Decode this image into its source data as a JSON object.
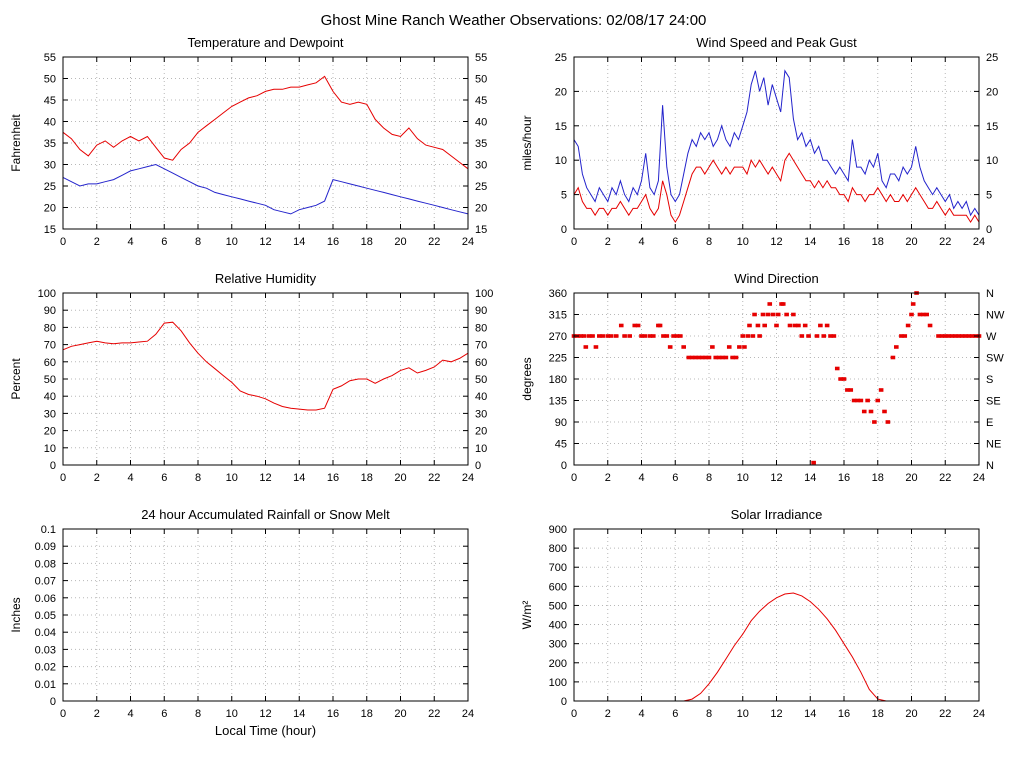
{
  "page_title": "Ghost Mine Ranch Weather Observations: 02/08/17 24:00",
  "colors": {
    "red": "#e60000",
    "blue": "#2424cc",
    "grid": "#b8b8b8",
    "axis": "#000000"
  },
  "x_axis": {
    "min": 0,
    "max": 24,
    "ticks": [
      0,
      2,
      4,
      6,
      8,
      10,
      12,
      14,
      16,
      18,
      20,
      22,
      24
    ]
  },
  "chart_data": [
    {
      "id": "temperature-dewpoint",
      "type": "line",
      "title": "Temperature and Dewpoint",
      "ylabel": "Fahrenheit",
      "xlabel": "",
      "ylim": [
        15,
        55
      ],
      "yticks": [
        15,
        20,
        25,
        30,
        35,
        40,
        45,
        50,
        55
      ],
      "right_labels": "mirror",
      "series": [
        {
          "name": "temperature",
          "color": "red",
          "x0": 0,
          "dx": 0.5,
          "y": [
            37.5,
            36,
            33.5,
            32,
            34.5,
            35.5,
            34,
            35.5,
            36.5,
            35.5,
            36.5,
            34,
            31.5,
            31,
            33.5,
            35,
            37.5,
            39,
            40.5,
            42,
            43.5,
            44.5,
            45.5,
            46,
            47,
            47.5,
            47.5,
            48,
            48,
            48.5,
            49,
            50.5,
            47,
            44.5,
            44,
            44.5,
            44,
            40.5,
            38.5,
            37,
            36.5,
            38.5,
            36,
            34.5,
            34,
            33.5,
            32,
            30.5,
            29
          ]
        },
        {
          "name": "dewpoint",
          "color": "blue",
          "x0": 0,
          "dx": 0.5,
          "y": [
            27,
            26,
            25,
            25.5,
            25.5,
            26,
            26.5,
            27.5,
            28.5,
            29,
            29.5,
            30,
            29,
            28,
            27,
            26,
            25,
            24.5,
            23.5,
            23,
            22.5,
            22,
            21.5,
            21,
            20.5,
            19.5,
            19,
            18.5,
            19.5,
            20,
            20.5,
            21.5,
            26.5,
            26,
            25.5,
            25,
            24.5,
            24,
            23.5,
            23,
            22.5,
            22,
            21.5,
            21,
            20.5,
            20,
            19.5,
            19,
            18.5
          ]
        }
      ]
    },
    {
      "id": "wind-speed-peak-gust",
      "type": "line",
      "title": "Wind Speed and Peak Gust",
      "ylabel": "miles/hour",
      "xlabel": "",
      "ylim": [
        0,
        25
      ],
      "yticks": [
        0,
        5,
        10,
        15,
        20,
        25
      ],
      "right_labels": "mirror",
      "series": [
        {
          "name": "peak-gust",
          "color": "blue",
          "x0": 0,
          "dx": 0.25,
          "y": [
            13,
            12,
            8,
            6,
            5,
            4,
            6,
            5,
            4,
            6,
            5,
            7,
            5,
            4,
            6,
            5,
            7,
            11,
            6,
            5,
            7,
            18,
            9,
            5,
            4,
            5,
            8,
            11,
            13,
            12,
            14,
            13,
            14,
            12,
            13,
            15,
            13,
            12,
            14,
            13,
            15,
            17,
            21,
            23,
            20,
            22,
            18,
            21,
            19,
            17,
            23,
            22,
            16,
            13,
            14,
            12,
            13,
            11,
            12,
            10,
            10,
            9,
            8,
            9,
            8,
            7,
            13,
            9,
            9,
            8,
            10,
            9,
            11,
            7,
            6,
            8,
            8,
            7,
            9,
            8,
            9,
            12,
            9,
            7,
            6,
            5,
            6,
            5,
            4,
            5,
            3,
            4,
            3,
            4,
            2,
            3,
            2
          ]
        },
        {
          "name": "wind-speed",
          "color": "red",
          "x0": 0,
          "dx": 0.25,
          "y": [
            5,
            6,
            4,
            3,
            3,
            2,
            3,
            3,
            2,
            3,
            3,
            4,
            3,
            2,
            3,
            3,
            4,
            5,
            3,
            2,
            3,
            7,
            5,
            2,
            1,
            2,
            4,
            6,
            8,
            9,
            9,
            8,
            9,
            10,
            9,
            8,
            9,
            8,
            9,
            9,
            9,
            8,
            10,
            9,
            10,
            9,
            8,
            9,
            8,
            7,
            10,
            11,
            10,
            9,
            8,
            7,
            7,
            6,
            7,
            6,
            7,
            6,
            6,
            5,
            5,
            4,
            6,
            5,
            5,
            4,
            5,
            5,
            6,
            5,
            4,
            5,
            4,
            4,
            5,
            4,
            5,
            6,
            5,
            4,
            3,
            3,
            4,
            3,
            2,
            3,
            2,
            2,
            2,
            2,
            1,
            2,
            1
          ]
        }
      ]
    },
    {
      "id": "relative-humidity",
      "type": "line",
      "title": "Relative Humidity",
      "ylabel": "Percent",
      "xlabel": "",
      "ylim": [
        0,
        100
      ],
      "yticks": [
        0,
        10,
        20,
        30,
        40,
        50,
        60,
        70,
        80,
        90,
        100
      ],
      "right_labels": "mirror",
      "series": [
        {
          "name": "humidity",
          "color": "red",
          "x0": 0,
          "dx": 0.5,
          "y": [
            67,
            69,
            70,
            71,
            72,
            71,
            70.5,
            71,
            71,
            71.5,
            72,
            76,
            82.5,
            83,
            78,
            71,
            65,
            60,
            56,
            52,
            48,
            43,
            41,
            40,
            38.5,
            36,
            34,
            33,
            32.5,
            32,
            32,
            33,
            44,
            46,
            49,
            50,
            50,
            47.5,
            50,
            52,
            55,
            56.5,
            53.5,
            55,
            57,
            61,
            60,
            62,
            65
          ]
        }
      ]
    },
    {
      "id": "wind-direction",
      "type": "scatter",
      "title": "Wind Direction",
      "ylabel": "degrees",
      "xlabel": "",
      "ylim": [
        0,
        360
      ],
      "yticks": [
        0,
        45,
        90,
        135,
        180,
        225,
        270,
        315,
        360
      ],
      "right_labels": [
        "N",
        "NE",
        "E",
        "SE",
        "S",
        "SW",
        "W",
        "NW",
        "N"
      ],
      "point_color": "red",
      "points": [
        [
          0,
          270
        ],
        [
          0.2,
          270
        ],
        [
          0.4,
          270
        ],
        [
          0.6,
          270
        ],
        [
          0.7,
          247
        ],
        [
          0.9,
          270
        ],
        [
          1.1,
          270
        ],
        [
          1.3,
          247
        ],
        [
          1.5,
          270
        ],
        [
          1.7,
          270
        ],
        [
          2,
          270
        ],
        [
          2.2,
          270
        ],
        [
          2.5,
          270
        ],
        [
          2.8,
          292
        ],
        [
          3,
          270
        ],
        [
          3.3,
          270
        ],
        [
          3.6,
          292
        ],
        [
          3.8,
          292
        ],
        [
          4,
          270
        ],
        [
          4.2,
          270
        ],
        [
          4.5,
          270
        ],
        [
          4.7,
          270
        ],
        [
          5,
          292
        ],
        [
          5.1,
          292
        ],
        [
          5.3,
          270
        ],
        [
          5.5,
          270
        ],
        [
          5.7,
          247
        ],
        [
          5.9,
          270
        ],
        [
          6.1,
          270
        ],
        [
          6.3,
          270
        ],
        [
          6.5,
          247
        ],
        [
          6.8,
          225
        ],
        [
          7,
          225
        ],
        [
          7.2,
          225
        ],
        [
          7.4,
          225
        ],
        [
          7.6,
          225
        ],
        [
          7.8,
          225
        ],
        [
          8,
          225
        ],
        [
          8.2,
          247
        ],
        [
          8.4,
          225
        ],
        [
          8.6,
          225
        ],
        [
          8.8,
          225
        ],
        [
          9,
          225
        ],
        [
          9.2,
          247
        ],
        [
          9.4,
          225
        ],
        [
          9.6,
          225
        ],
        [
          9.8,
          247
        ],
        [
          10,
          270
        ],
        [
          10.1,
          247
        ],
        [
          10.3,
          270
        ],
        [
          10.4,
          292
        ],
        [
          10.6,
          270
        ],
        [
          10.7,
          315
        ],
        [
          10.9,
          292
        ],
        [
          11,
          270
        ],
        [
          11.2,
          315
        ],
        [
          11.3,
          292
        ],
        [
          11.5,
          315
        ],
        [
          11.6,
          337
        ],
        [
          11.8,
          315
        ],
        [
          12,
          292
        ],
        [
          12.1,
          315
        ],
        [
          12.3,
          337
        ],
        [
          12.4,
          337
        ],
        [
          12.6,
          315
        ],
        [
          12.8,
          292
        ],
        [
          13,
          315
        ],
        [
          13.1,
          292
        ],
        [
          13.3,
          292
        ],
        [
          13.5,
          270
        ],
        [
          13.7,
          292
        ],
        [
          13.9,
          270
        ],
        [
          14.2,
          5
        ],
        [
          14.4,
          270
        ],
        [
          14.6,
          292
        ],
        [
          14.8,
          270
        ],
        [
          15,
          292
        ],
        [
          15.2,
          270
        ],
        [
          15.4,
          270
        ],
        [
          15.6,
          202
        ],
        [
          15.8,
          180
        ],
        [
          16,
          180
        ],
        [
          16.2,
          157
        ],
        [
          16.4,
          157
        ],
        [
          16.6,
          135
        ],
        [
          16.8,
          135
        ],
        [
          17,
          135
        ],
        [
          17.2,
          112
        ],
        [
          17.4,
          135
        ],
        [
          17.6,
          112
        ],
        [
          17.8,
          90
        ],
        [
          18,
          135
        ],
        [
          18.2,
          157
        ],
        [
          18.4,
          112
        ],
        [
          18.6,
          90
        ],
        [
          18.9,
          225
        ],
        [
          19.1,
          247
        ],
        [
          19.4,
          270
        ],
        [
          19.6,
          270
        ],
        [
          19.8,
          292
        ],
        [
          20,
          315
        ],
        [
          20.1,
          337
        ],
        [
          20.3,
          360
        ],
        [
          20.5,
          315
        ],
        [
          20.7,
          315
        ],
        [
          20.9,
          315
        ],
        [
          21.1,
          292
        ],
        [
          21.6,
          270
        ],
        [
          21.8,
          270
        ],
        [
          22,
          270
        ],
        [
          22.2,
          270
        ],
        [
          22.4,
          270
        ],
        [
          22.6,
          270
        ],
        [
          22.8,
          270
        ],
        [
          23,
          270
        ],
        [
          23.2,
          270
        ],
        [
          23.4,
          270
        ],
        [
          23.6,
          270
        ],
        [
          23.8,
          270
        ],
        [
          24,
          270
        ]
      ]
    },
    {
      "id": "accumulated-rainfall",
      "type": "line",
      "title": "24 hour Accumulated Rainfall or Snow Melt",
      "ylabel": "Inches",
      "xlabel": "Local Time (hour)",
      "ylim": [
        0,
        0.1
      ],
      "yticks": [
        0,
        0.01,
        0.02,
        0.03,
        0.04,
        0.05,
        0.06,
        0.07,
        0.08,
        0.09,
        0.1
      ],
      "ytick_labels": [
        "0",
        "0.01",
        "0.02",
        "0.03",
        "0.04",
        "0.05",
        "0.06",
        "0.07",
        "0.08",
        "0.09",
        "0.1"
      ],
      "right_labels": "none",
      "series": [
        {
          "name": "rainfall",
          "color": "red",
          "x": [
            0,
            24
          ],
          "y": [
            0,
            0
          ]
        }
      ]
    },
    {
      "id": "solar-irradiance",
      "type": "line",
      "title": "Solar Irradiance",
      "ylabel": "W/m²",
      "xlabel": "",
      "ylim": [
        0,
        900
      ],
      "yticks": [
        0,
        100,
        200,
        300,
        400,
        500,
        600,
        700,
        800,
        900
      ],
      "right_labels": "none",
      "series": [
        {
          "name": "solar",
          "color": "red",
          "x0": 0,
          "dx": 0.5,
          "y": [
            0,
            0,
            0,
            0,
            0,
            0,
            0,
            0,
            0,
            0,
            0,
            0,
            0,
            0,
            10,
            40,
            90,
            150,
            220,
            290,
            350,
            420,
            470,
            510,
            540,
            560,
            565,
            550,
            520,
            480,
            430,
            370,
            300,
            230,
            150,
            60,
            10,
            0,
            0,
            0,
            0,
            0,
            0,
            0,
            0,
            0,
            0,
            0,
            0
          ]
        }
      ]
    }
  ]
}
